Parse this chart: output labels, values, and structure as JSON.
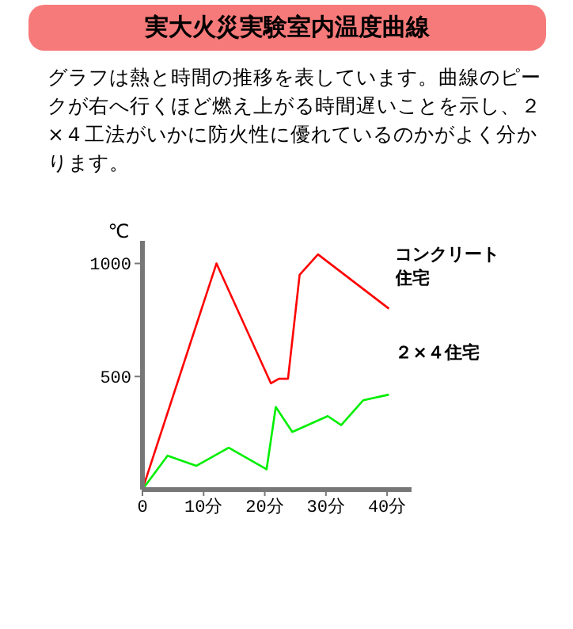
{
  "chart_data": {
    "type": "line",
    "title": "実大火災実験室内温度曲線",
    "subtitle": "グラフは熱と時間の推移を表しています。曲線のピークが右へ行くほど燃え上がる時間遅いことを示し、２×４工法がいかに防火性に優れているのかがよく分かります。",
    "ylabel": "℃",
    "series": [
      {
        "name": "コンクリート住宅",
        "color": "#ff0000",
        "x": [
          0,
          12.1,
          21,
          22.3,
          23.8,
          25.7,
          28.7,
          40.3
        ],
        "values": [
          0,
          1000,
          470,
          490,
          490,
          950,
          1040,
          800
        ]
      },
      {
        "name": "２×４住宅",
        "color": "#00ee00",
        "x": [
          0,
          4.1,
          8.8,
          14.1,
          20.3,
          21.8,
          24.5,
          30.3,
          32.5,
          36.1,
          40.3
        ],
        "values": [
          0,
          150,
          105,
          185,
          90,
          365,
          255,
          325,
          285,
          395,
          420
        ]
      }
    ],
    "xlim": [
      0,
      44
    ],
    "xticks": [
      {
        "value": 0,
        "label": "0"
      },
      {
        "value": 10,
        "label": "10分"
      },
      {
        "value": 20,
        "label": "20分"
      },
      {
        "value": 30,
        "label": "30分"
      },
      {
        "value": 40,
        "label": "40分"
      }
    ],
    "ylim": [
      0,
      1100
    ],
    "yticks": [
      500,
      1000
    ],
    "grid": false,
    "legend": false,
    "marker": "none",
    "line_style": "solid"
  }
}
